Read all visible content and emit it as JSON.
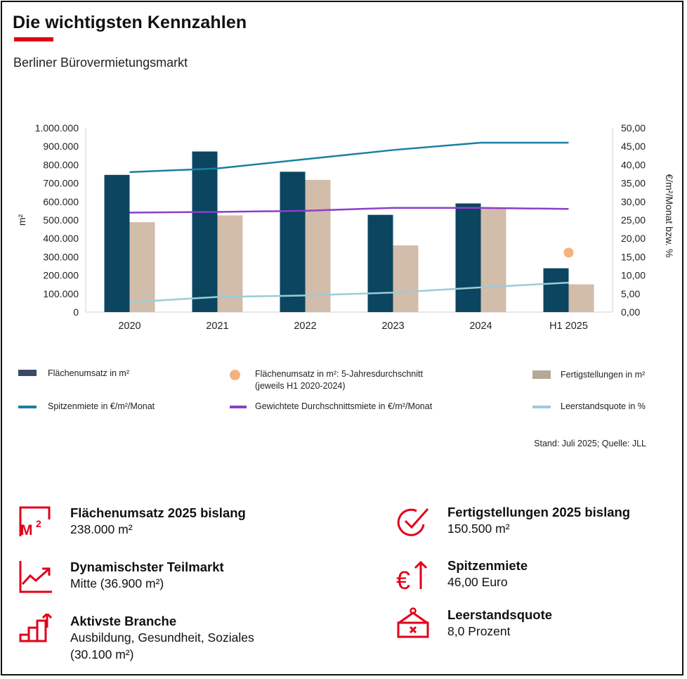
{
  "header": {
    "title": "Die wichtigsten Kennzahlen",
    "subtitle": "Berliner Bürovermietungsmarkt"
  },
  "chart_data": {
    "type": "bar",
    "categories": [
      "2020",
      "2021",
      "2022",
      "2023",
      "2024",
      "H1 2025"
    ],
    "ylabel": "m²",
    "y2label": "€/m²/Monat bzw. %",
    "ylim": [
      0,
      1000000
    ],
    "y2lim": [
      0,
      50
    ],
    "y_ticks": [
      "0",
      "100.000",
      "200.000",
      "300.000",
      "400.000",
      "500.000",
      "600.000",
      "700.000",
      "800.000",
      "900.000",
      "1.000.000"
    ],
    "y2_ticks": [
      "0,00",
      "5,00",
      "10,00",
      "15,00",
      "20,00",
      "25,00",
      "30,00",
      "35,00",
      "40,00",
      "45,00",
      "50,00"
    ],
    "series": [
      {
        "name": "Flächenumsatz in m²",
        "type": "bar",
        "axis": "left",
        "color": "#0b4560",
        "values": [
          745000,
          872000,
          762000,
          528000,
          590000,
          238000
        ]
      },
      {
        "name": "Fertigstellungen in m²",
        "type": "bar",
        "axis": "left",
        "color": "#d2bcaa",
        "values": [
          488000,
          525000,
          718000,
          362000,
          562000,
          150500
        ]
      },
      {
        "name": "Spitzenmiete in €/m²/Monat",
        "type": "line",
        "axis": "right",
        "color": "#1b7fa3",
        "values": [
          38.0,
          39.0,
          41.5,
          44.0,
          46.0,
          46.0
        ]
      },
      {
        "name": "Gewichtete Durchschnittsmiete in €/m²/Monat",
        "type": "line",
        "axis": "right",
        "color": "#8b3fc8",
        "values": [
          27.0,
          27.2,
          27.5,
          28.3,
          28.3,
          28.0
        ]
      },
      {
        "name": "Leerstandsquote in %",
        "type": "line",
        "axis": "right",
        "color": "#9ecbd8",
        "values": [
          2.7,
          4.1,
          4.5,
          5.3,
          6.7,
          8.0
        ]
      },
      {
        "name": "Flächenumsatz in m²: 5-Jahresdurchschnitt (jeweils H1 2020-2024)",
        "type": "point",
        "axis": "left",
        "color": "#f5b27e",
        "category": "H1 2025",
        "value": 323000
      }
    ]
  },
  "legend": {
    "flaechenumsatz": "Flächenumsatz in m²",
    "durchschnitt_line1": "Flächenumsatz in m²: 5-Jahresdurchschnitt",
    "durchschnitt_line2": "(jeweils H1 2020-2024)",
    "fertigstellungen": "Fertigstellungen in m²",
    "spitzenmiete": "Spitzenmiete in €/m²/Monat",
    "durchschnittsmiete": "Gewichtete Durchschnittsmiete in €/m²/Monat",
    "leerstand": "Leerstandsquote in %"
  },
  "source": "Stand: Juli 2025; Quelle: JLL",
  "kpis": {
    "flaechenumsatz": {
      "title": "Flächenumsatz 2025 bislang",
      "value": "238.000 m²",
      "icon": "m2-icon"
    },
    "teilmarkt": {
      "title": "Dynamischster Teilmarkt",
      "value": "Mitte (36.900 m²)",
      "icon": "trend-up-icon"
    },
    "branche": {
      "title": "Aktivste Branche",
      "value": "Ausbildung, Gesundheit, Soziales",
      "value2": "(30.100 m²)",
      "icon": "bar-growth-icon"
    },
    "fertigstellungen": {
      "title": "Fertigstellungen 2025 bislang",
      "value": "150.500 m²",
      "icon": "check-circle-icon"
    },
    "spitzenmiete": {
      "title": "Spitzenmiete",
      "value": "46,00 Euro",
      "icon": "euro-up-icon"
    },
    "leerstand": {
      "title": "Leerstandsquote",
      "value": "8,0 Prozent",
      "icon": "empty-sign-icon"
    }
  },
  "colors": {
    "accent": "#e2001a",
    "bar_primary": "#0b4560",
    "bar_secondary": "#d2bcaa"
  }
}
